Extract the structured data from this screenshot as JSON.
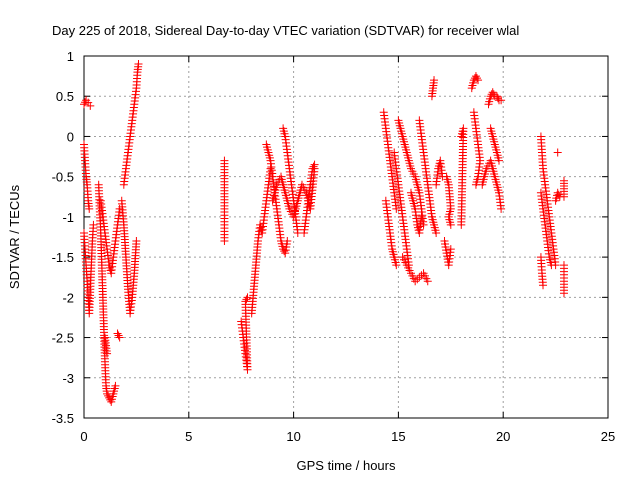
{
  "chart_data": {
    "type": "scatter",
    "title": "Day 225 of 2018, Sidereal Day-to-day VTEC variation (SDTVAR) for receiver wlal",
    "xlabel": "GPS time / hours",
    "ylabel": "SDTVAR / TECUs",
    "xlim": [
      0,
      25
    ],
    "ylim": [
      -3.5,
      1
    ],
    "xticks": [
      "0",
      "5",
      "10",
      "15",
      "20",
      "25"
    ],
    "yticks": [
      "1",
      "0.5",
      "0",
      "-0.5",
      "-1",
      "-1.5",
      "-2",
      "-2.5",
      "-3",
      "-3.5"
    ],
    "grid": true,
    "marker": "+",
    "marker_color": "#ff0000",
    "series": [
      {
        "name": "SDTVAR",
        "tracks": [
          [
            [
              0.0,
              0.4
            ],
            [
              0.1,
              0.45
            ],
            [
              0.2,
              0.42
            ],
            [
              0.3,
              0.38
            ]
          ],
          [
            [
              0.0,
              -0.1
            ],
            [
              0.05,
              -0.3
            ],
            [
              0.1,
              -0.5
            ],
            [
              0.15,
              -0.6
            ],
            [
              0.2,
              -0.8
            ],
            [
              0.25,
              -0.9
            ]
          ],
          [
            [
              0.0,
              -1.2
            ],
            [
              0.05,
              -1.4
            ],
            [
              0.1,
              -1.6
            ],
            [
              0.15,
              -1.8
            ],
            [
              0.2,
              -2.0
            ],
            [
              0.25,
              -2.2
            ],
            [
              0.3,
              -1.9
            ],
            [
              0.35,
              -1.6
            ],
            [
              0.4,
              -1.3
            ],
            [
              0.45,
              -1.1
            ]
          ],
          [
            [
              0.7,
              -0.6
            ],
            [
              0.75,
              -0.9
            ],
            [
              0.8,
              -1.2
            ],
            [
              0.85,
              -1.6
            ],
            [
              0.9,
              -2.0
            ],
            [
              0.95,
              -2.4
            ],
            [
              1.0,
              -2.8
            ],
            [
              1.05,
              -3.1
            ],
            [
              1.1,
              -3.2
            ],
            [
              1.2,
              -3.25
            ],
            [
              1.3,
              -3.3
            ],
            [
              1.4,
              -3.2
            ],
            [
              1.5,
              -3.1
            ]
          ],
          [
            [
              0.8,
              -0.8
            ],
            [
              0.9,
              -1.0
            ],
            [
              1.0,
              -1.2
            ],
            [
              1.1,
              -1.4
            ],
            [
              1.2,
              -1.6
            ],
            [
              1.3,
              -1.7
            ],
            [
              1.4,
              -1.5
            ],
            [
              1.5,
              -1.3
            ],
            [
              1.6,
              -1.1
            ],
            [
              1.7,
              -0.9
            ]
          ],
          [
            [
              1.0,
              -2.5
            ],
            [
              1.05,
              -2.6
            ],
            [
              1.1,
              -2.7
            ]
          ],
          [
            [
              1.6,
              -2.45
            ],
            [
              1.7,
              -2.5
            ]
          ],
          [
            [
              1.8,
              -0.8
            ],
            [
              1.9,
              -1.1
            ],
            [
              2.0,
              -1.5
            ],
            [
              2.1,
              -1.9
            ],
            [
              2.2,
              -2.2
            ],
            [
              2.3,
              -2.0
            ],
            [
              2.4,
              -1.7
            ],
            [
              2.5,
              -1.3
            ]
          ],
          [
            [
              1.9,
              -0.6
            ],
            [
              2.0,
              -0.4
            ],
            [
              2.1,
              -0.2
            ],
            [
              2.2,
              0.0
            ],
            [
              2.3,
              0.2
            ],
            [
              2.4,
              0.4
            ],
            [
              2.5,
              0.6
            ],
            [
              2.55,
              0.8
            ],
            [
              2.6,
              0.9
            ]
          ],
          [
            [
              6.7,
              -0.3
            ],
            [
              6.7,
              -0.6
            ],
            [
              6.7,
              -0.9
            ],
            [
              6.7,
              -1.1
            ],
            [
              6.7,
              -1.3
            ]
          ],
          [
            [
              7.5,
              -2.3
            ],
            [
              7.6,
              -2.5
            ],
            [
              7.7,
              -2.7
            ],
            [
              7.8,
              -2.9
            ],
            [
              7.7,
              -2.05
            ],
            [
              7.8,
              -2.0
            ]
          ],
          [
            [
              8.0,
              -2.2
            ],
            [
              8.1,
              -1.9
            ],
            [
              8.2,
              -1.6
            ],
            [
              8.3,
              -1.3
            ],
            [
              8.4,
              -1.1
            ],
            [
              8.5,
              -1.2
            ],
            [
              8.6,
              -1.0
            ],
            [
              8.7,
              -0.8
            ],
            [
              8.8,
              -0.6
            ],
            [
              8.9,
              -0.4
            ]
          ],
          [
            [
              8.7,
              -0.1
            ],
            [
              8.8,
              -0.2
            ],
            [
              8.9,
              -0.3
            ],
            [
              9.0,
              -0.5
            ],
            [
              9.1,
              -0.7
            ],
            [
              9.2,
              -0.9
            ],
            [
              9.3,
              -1.1
            ],
            [
              9.4,
              -1.3
            ],
            [
              9.5,
              -1.4
            ],
            [
              9.6,
              -1.45
            ],
            [
              9.7,
              -1.3
            ]
          ],
          [
            [
              9.5,
              0.1
            ],
            [
              9.6,
              0.0
            ],
            [
              9.7,
              -0.2
            ],
            [
              9.8,
              -0.4
            ],
            [
              9.9,
              -0.6
            ],
            [
              10.0,
              -0.8
            ],
            [
              10.1,
              -1.0
            ],
            [
              10.2,
              -1.2
            ]
          ],
          [
            [
              9.0,
              -0.8
            ],
            [
              9.2,
              -0.6
            ],
            [
              9.4,
              -0.5
            ],
            [
              9.6,
              -0.7
            ],
            [
              9.8,
              -0.9
            ],
            [
              10.0,
              -1.0
            ],
            [
              10.2,
              -0.8
            ],
            [
              10.4,
              -0.6
            ],
            [
              10.6,
              -0.7
            ],
            [
              10.8,
              -0.9
            ],
            [
              11.0,
              -0.4
            ]
          ],
          [
            [
              10.5,
              -1.2
            ],
            [
              10.6,
              -1.0
            ],
            [
              10.7,
              -0.8
            ],
            [
              10.8,
              -0.6
            ],
            [
              10.9,
              -0.4
            ],
            [
              11.0,
              -0.35
            ]
          ],
          [
            [
              14.3,
              0.3
            ],
            [
              14.4,
              0.1
            ],
            [
              14.5,
              -0.1
            ],
            [
              14.6,
              -0.3
            ],
            [
              14.7,
              -0.5
            ],
            [
              14.8,
              -0.7
            ],
            [
              14.9,
              -0.9
            ]
          ],
          [
            [
              14.4,
              -0.8
            ],
            [
              14.5,
              -1.0
            ],
            [
              14.6,
              -1.2
            ],
            [
              14.7,
              -1.4
            ],
            [
              14.8,
              -1.5
            ],
            [
              14.9,
              -1.6
            ]
          ],
          [
            [
              14.8,
              -0.2
            ],
            [
              14.9,
              -0.4
            ],
            [
              15.0,
              -0.6
            ],
            [
              15.1,
              -0.8
            ],
            [
              15.2,
              -1.0
            ],
            [
              15.3,
              -1.2
            ],
            [
              15.4,
              -1.4
            ],
            [
              15.5,
              -1.6
            ]
          ],
          [
            [
              15.0,
              0.2
            ],
            [
              15.2,
              0.0
            ],
            [
              15.4,
              -0.2
            ],
            [
              15.6,
              -0.4
            ],
            [
              15.8,
              -0.5
            ],
            [
              16.0,
              -0.7
            ],
            [
              16.1,
              -0.9
            ],
            [
              16.2,
              -1.1
            ]
          ],
          [
            [
              15.2,
              -1.5
            ],
            [
              15.4,
              -1.6
            ],
            [
              15.6,
              -1.7
            ],
            [
              15.8,
              -1.8
            ],
            [
              16.0,
              -1.75
            ],
            [
              16.2,
              -1.7
            ],
            [
              16.4,
              -1.8
            ]
          ],
          [
            [
              15.6,
              -0.7
            ],
            [
              15.7,
              -0.8
            ],
            [
              15.8,
              -0.9
            ],
            [
              15.9,
              -1.1
            ],
            [
              16.0,
              -1.2
            ],
            [
              16.1,
              -1.0
            ]
          ],
          [
            [
              16.0,
              0.2
            ],
            [
              16.1,
              0.0
            ],
            [
              16.2,
              -0.2
            ],
            [
              16.3,
              -0.4
            ],
            [
              16.4,
              -0.6
            ],
            [
              16.5,
              -0.8
            ],
            [
              16.6,
              -1.0
            ]
          ],
          [
            [
              16.6,
              0.5
            ],
            [
              16.65,
              0.6
            ],
            [
              16.7,
              0.7
            ]
          ],
          [
            [
              16.6,
              -1.0
            ],
            [
              16.7,
              -1.1
            ],
            [
              16.8,
              -1.2
            ]
          ],
          [
            [
              16.8,
              -0.6
            ],
            [
              16.9,
              -0.4
            ],
            [
              17.0,
              -0.3
            ],
            [
              17.1,
              -0.5
            ]
          ],
          [
            [
              17.2,
              -1.3
            ],
            [
              17.3,
              -1.45
            ],
            [
              17.4,
              -1.6
            ],
            [
              17.5,
              -1.4
            ]
          ],
          [
            [
              17.3,
              -0.5
            ],
            [
              17.4,
              -0.6
            ],
            [
              17.5,
              -0.9
            ],
            [
              17.4,
              -1.0
            ],
            [
              17.5,
              -1.1
            ]
          ],
          [
            [
              18.0,
              -1.1
            ],
            [
              18.1,
              0.1
            ],
            [
              18.0,
              0.0
            ]
          ],
          [
            [
              18.5,
              0.6
            ],
            [
              18.6,
              0.7
            ],
            [
              18.7,
              0.75
            ],
            [
              18.8,
              0.7
            ]
          ],
          [
            [
              18.6,
              0.3
            ],
            [
              18.7,
              0.1
            ],
            [
              18.8,
              -0.1
            ],
            [
              18.9,
              -0.3
            ],
            [
              18.8,
              -0.5
            ],
            [
              18.7,
              -0.6
            ]
          ],
          [
            [
              19.0,
              -0.6
            ],
            [
              19.2,
              -0.4
            ],
            [
              19.4,
              -0.3
            ],
            [
              19.6,
              -0.5
            ],
            [
              19.8,
              -0.7
            ],
            [
              19.9,
              -0.9
            ]
          ],
          [
            [
              19.3,
              0.4
            ],
            [
              19.4,
              0.5
            ],
            [
              19.5,
              0.55
            ],
            [
              19.6,
              0.5
            ],
            [
              19.7,
              0.5
            ],
            [
              19.8,
              0.45
            ],
            [
              19.9,
              0.45
            ]
          ],
          [
            [
              19.4,
              0.1
            ],
            [
              19.5,
              0.0
            ],
            [
              19.6,
              -0.1
            ],
            [
              19.7,
              -0.2
            ],
            [
              19.8,
              -0.3
            ]
          ],
          [
            [
              21.8,
              0.0
            ],
            [
              21.85,
              -0.2
            ],
            [
              21.9,
              -0.4
            ],
            [
              22.0,
              -0.6
            ],
            [
              22.1,
              -0.8
            ],
            [
              22.2,
              -1.0
            ],
            [
              22.3,
              -1.2
            ],
            [
              22.4,
              -1.4
            ],
            [
              22.5,
              -1.6
            ]
          ],
          [
            [
              21.8,
              -0.7
            ],
            [
              21.9,
              -0.9
            ],
            [
              22.0,
              -1.1
            ],
            [
              22.1,
              -1.3
            ],
            [
              22.2,
              -1.5
            ],
            [
              22.3,
              -1.6
            ]
          ],
          [
            [
              21.8,
              -1.5
            ],
            [
              21.85,
              -1.7
            ],
            [
              21.9,
              -1.85
            ]
          ],
          [
            [
              22.5,
              -0.8
            ],
            [
              22.6,
              -0.7
            ],
            [
              22.7,
              -0.75
            ]
          ],
          [
            [
              22.6,
              -0.2
            ]
          ],
          [
            [
              22.9,
              -0.55
            ],
            [
              22.9,
              -0.65
            ],
            [
              22.9,
              -0.75
            ]
          ],
          [
            [
              22.9,
              -1.6
            ],
            [
              22.9,
              -1.8
            ],
            [
              22.9,
              -1.95
            ]
          ]
        ]
      }
    ]
  }
}
